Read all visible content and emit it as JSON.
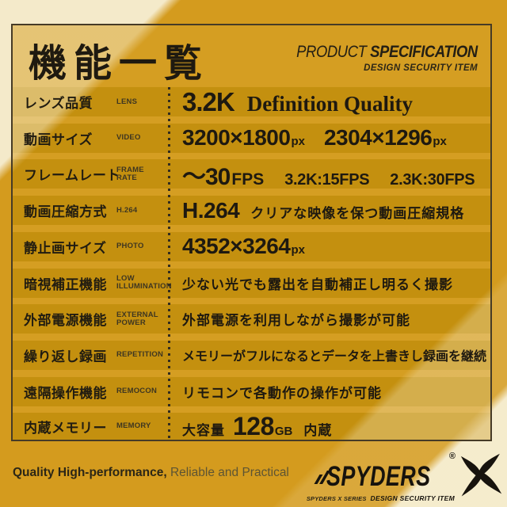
{
  "header": {
    "title": "機能一覧",
    "product": "PRODUCT ",
    "specification": "SPECIFICATION",
    "subtitle": "DESIGN SECURITY ITEM"
  },
  "table": {
    "rows": [
      {
        "jp": "レンズ品質",
        "en": "LENS",
        "value": [
          {
            "t": "3.2K",
            "c": "big"
          },
          {
            "t": "Definition Quality",
            "c": "serif"
          }
        ]
      },
      {
        "jp": "動画サイズ",
        "en": "VIDEO",
        "value": [
          {
            "t": "3200×1800",
            "c": "num"
          },
          {
            "t": "px",
            "c": "unit"
          },
          {
            "t": "2304×1296",
            "c": "num gap"
          },
          {
            "t": "px",
            "c": "unit"
          }
        ]
      },
      {
        "jp": "フレームレート",
        "en": "FRAME RATE",
        "value": [
          {
            "t": "～30",
            "c": "fpsbig"
          },
          {
            "t": "FPS",
            "c": "fps"
          },
          {
            "t": "3.2K:15FPS",
            "c": "mid"
          },
          {
            "t": "2.3K:30FPS",
            "c": "mid"
          }
        ]
      },
      {
        "jp": "動画圧縮方式",
        "en": "H.264",
        "value": [
          {
            "t": "H.264",
            "c": "num"
          },
          {
            "t": "クリアな映像を保つ動画圧縮規格",
            "c": "jp jpml"
          }
        ]
      },
      {
        "jp": "静止画サイズ",
        "en": "PHOTO",
        "value": [
          {
            "t": "4352×3264",
            "c": "num"
          },
          {
            "t": "px",
            "c": "unit"
          }
        ]
      },
      {
        "jp": "暗視補正機能",
        "en": "LOW\nILLUMINATION",
        "value": [
          {
            "t": "少ない光でも露出を自動補正し明るく撮影",
            "c": "jp"
          }
        ]
      },
      {
        "jp": "外部電源機能",
        "en": "EXTERNAL\nPOWER",
        "value": [
          {
            "t": "外部電源を利用しながら撮影が可能",
            "c": "jp"
          }
        ]
      },
      {
        "jp": "繰り返し録画",
        "en": "REPETITION",
        "value": [
          {
            "t": "メモリーがフルになるとデータを上書きし録画を継続",
            "c": "jptight"
          }
        ]
      },
      {
        "jp": "遠隔操作機能",
        "en": "REMOCON",
        "value": [
          {
            "t": "リモコンで各動作の操作が可能",
            "c": "jp"
          }
        ]
      },
      {
        "jp": "内蔵メモリー",
        "en": "MEMORY",
        "value": [
          {
            "t": "大容量",
            "c": "jp"
          },
          {
            "t": "128",
            "c": "128"
          },
          {
            "t": "GB",
            "c": "gb"
          },
          {
            "t": "内蔵",
            "c": "jp jpml"
          }
        ]
      }
    ]
  },
  "footer": {
    "tagline_bold": "Quality High-performance,",
    "tagline_rest": " Reliable and Practical",
    "logo": {
      "brand": "SPYDERS",
      "reg": "®",
      "series": "SPYDERS X SERIES",
      "item": "DESIGN SECURITY ITEM"
    }
  },
  "colors": {
    "background_gold": "#d49b1e",
    "band_dark_gold": "#c4900f",
    "stripe_light_gold": "#ddb04a",
    "sheen_cream": "#f6eed3",
    "text_dark": "#1e1910",
    "frame_border": "#463b26"
  },
  "layout_values": {
    "row_count": "10"
  }
}
